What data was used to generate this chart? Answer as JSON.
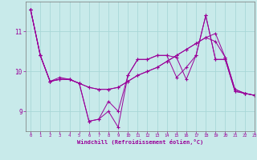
{
  "xlabel": "Windchill (Refroidissement éolien,°C)",
  "xlim": [
    -0.5,
    23
  ],
  "ylim": [
    8.5,
    11.75
  ],
  "yticks": [
    9,
    10,
    11
  ],
  "xticks": [
    0,
    1,
    2,
    3,
    4,
    5,
    6,
    7,
    8,
    9,
    10,
    11,
    12,
    13,
    14,
    15,
    16,
    17,
    18,
    19,
    20,
    21,
    22,
    23
  ],
  "bg_color": "#c8eaea",
  "line_color": "#990099",
  "grid_color": "#a8d8d8",
  "series": [
    [
      11.55,
      10.4,
      9.75,
      9.8,
      9.8,
      9.7,
      9.6,
      9.55,
      9.55,
      9.6,
      9.75,
      9.9,
      10.0,
      10.1,
      10.25,
      10.4,
      10.55,
      10.7,
      10.85,
      10.95,
      10.35,
      9.55,
      9.45,
      9.4
    ],
    [
      11.55,
      10.4,
      9.75,
      9.8,
      9.8,
      9.7,
      8.75,
      8.8,
      9.0,
      8.6,
      9.9,
      10.3,
      10.3,
      10.4,
      10.4,
      10.35,
      9.8,
      10.4,
      11.4,
      10.3,
      10.3,
      9.5,
      9.45,
      9.4
    ],
    [
      11.55,
      10.4,
      9.75,
      9.8,
      9.8,
      9.7,
      8.75,
      8.8,
      9.25,
      9.0,
      9.9,
      10.3,
      10.3,
      10.4,
      10.4,
      9.85,
      10.1,
      10.4,
      11.4,
      10.3,
      10.3,
      9.5,
      9.45,
      9.4
    ],
    [
      11.55,
      10.4,
      9.75,
      9.85,
      9.8,
      9.7,
      9.6,
      9.55,
      9.55,
      9.6,
      9.75,
      9.9,
      10.0,
      10.1,
      10.25,
      10.4,
      10.55,
      10.7,
      10.85,
      10.75,
      10.35,
      9.55,
      9.45,
      9.4
    ]
  ]
}
